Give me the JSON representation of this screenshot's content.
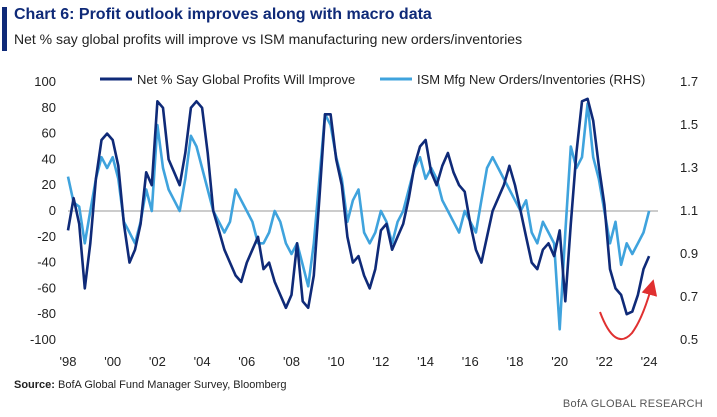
{
  "header": {
    "title": "Chart 6: Profit outlook improves along with macro data",
    "subtitle": "Net % say global profits will improve vs ISM manufacturing new orders/inventories"
  },
  "footer": {
    "source_label": "Source:",
    "source_text": "BofA Global Fund Manager Survey, Bloomberg",
    "brand": "BofA GLOBAL RESEARCH"
  },
  "colors": {
    "series1": "#0f2a78",
    "series2": "#3fa3dd",
    "arrow": "#e03030",
    "zero_line": "#999999"
  },
  "chart_data": {
    "type": "line",
    "xlim": [
      1998,
      2024.4
    ],
    "x_ticks": [
      1998,
      2000,
      2002,
      2004,
      2006,
      2008,
      2010,
      2012,
      2014,
      2016,
      2018,
      2020,
      2022,
      2024
    ],
    "x_tick_labels": [
      "'98",
      "'00",
      "'02",
      "'04",
      "'06",
      "'08",
      "'10",
      "'12",
      "'14",
      "'16",
      "'18",
      "'20",
      "'22",
      "'24"
    ],
    "ylim_left": [
      -100,
      100
    ],
    "y_ticks_left": [
      100,
      80,
      60,
      40,
      20,
      0,
      -20,
      -40,
      -60,
      -80,
      -100
    ],
    "ylim_right": [
      0.5,
      1.7
    ],
    "y_ticks_right": [
      1.7,
      1.5,
      1.3,
      1.1,
      0.9,
      0.7,
      0.5
    ],
    "y_tick_labels_right": [
      "1.7",
      "1.5",
      "1.3",
      "1.1",
      "0.9",
      "0.7",
      "0.5"
    ],
    "grid": false,
    "legend_position": "top",
    "series": [
      {
        "name": "Net % Say Global Profits Will Improve",
        "axis": "left",
        "x": [
          1998.0,
          1998.25,
          1998.5,
          1998.75,
          1999.0,
          1999.25,
          1999.5,
          1999.75,
          2000.0,
          2000.25,
          2000.5,
          2000.75,
          2001.0,
          2001.25,
          2001.5,
          2001.75,
          2002.0,
          2002.25,
          2002.5,
          2002.75,
          2003.0,
          2003.25,
          2003.5,
          2003.75,
          2004.0,
          2004.25,
          2004.5,
          2004.75,
          2005.0,
          2005.25,
          2005.5,
          2005.75,
          2006.0,
          2006.25,
          2006.5,
          2006.75,
          2007.0,
          2007.25,
          2007.5,
          2007.75,
          2008.0,
          2008.25,
          2008.5,
          2008.75,
          2009.0,
          2009.25,
          2009.5,
          2009.75,
          2010.0,
          2010.25,
          2010.5,
          2010.75,
          2011.0,
          2011.25,
          2011.5,
          2011.75,
          2012.0,
          2012.25,
          2012.5,
          2012.75,
          2013.0,
          2013.25,
          2013.5,
          2013.75,
          2014.0,
          2014.25,
          2014.5,
          2014.75,
          2015.0,
          2015.25,
          2015.5,
          2015.75,
          2016.0,
          2016.25,
          2016.5,
          2016.75,
          2017.0,
          2017.25,
          2017.5,
          2017.75,
          2018.0,
          2018.25,
          2018.5,
          2018.75,
          2019.0,
          2019.25,
          2019.5,
          2019.75,
          2020.0,
          2020.25,
          2020.5,
          2020.75,
          2021.0,
          2021.25,
          2021.5,
          2021.75,
          2022.0,
          2022.25,
          2022.5,
          2022.75,
          2023.0,
          2023.25,
          2023.5,
          2023.75,
          2024.0
        ],
        "values": [
          -15,
          10,
          -10,
          -60,
          -25,
          25,
          55,
          60,
          55,
          35,
          -10,
          -40,
          -30,
          -10,
          30,
          20,
          85,
          80,
          40,
          30,
          20,
          45,
          80,
          85,
          80,
          45,
          0,
          -15,
          -30,
          -40,
          -50,
          -55,
          -40,
          -30,
          -20,
          -45,
          -40,
          -55,
          -65,
          -75,
          -65,
          -25,
          -70,
          -75,
          -50,
          10,
          75,
          75,
          40,
          20,
          -20,
          -40,
          -35,
          -50,
          -60,
          -45,
          -15,
          -10,
          -30,
          -20,
          -10,
          10,
          35,
          50,
          55,
          30,
          20,
          35,
          45,
          30,
          20,
          15,
          -10,
          -30,
          -40,
          -20,
          0,
          10,
          20,
          35,
          20,
          0,
          -20,
          -40,
          -45,
          -30,
          -25,
          -35,
          -15,
          -70,
          -10,
          45,
          85,
          87,
          70,
          35,
          5,
          -45,
          -60,
          -65,
          -80,
          -78,
          -65,
          -45,
          -35
        ]
      },
      {
        "name": "ISM Mfg New Orders/Inventories (RHS)",
        "axis": "right",
        "x": [
          1998.0,
          1998.25,
          1998.5,
          1998.75,
          1999.0,
          1999.25,
          1999.5,
          1999.75,
          2000.0,
          2000.25,
          2000.5,
          2000.75,
          2001.0,
          2001.25,
          2001.5,
          2001.75,
          2002.0,
          2002.25,
          2002.5,
          2002.75,
          2003.0,
          2003.25,
          2003.5,
          2003.75,
          2004.0,
          2004.25,
          2004.5,
          2004.75,
          2005.0,
          2005.25,
          2005.5,
          2005.75,
          2006.0,
          2006.25,
          2006.5,
          2006.75,
          2007.0,
          2007.25,
          2007.5,
          2007.75,
          2008.0,
          2008.25,
          2008.5,
          2008.75,
          2009.0,
          2009.25,
          2009.5,
          2009.75,
          2010.0,
          2010.25,
          2010.5,
          2010.75,
          2011.0,
          2011.25,
          2011.5,
          2011.75,
          2012.0,
          2012.25,
          2012.5,
          2012.75,
          2013.0,
          2013.25,
          2013.5,
          2013.75,
          2014.0,
          2014.25,
          2014.5,
          2014.75,
          2015.0,
          2015.25,
          2015.5,
          2015.75,
          2016.0,
          2016.25,
          2016.5,
          2016.75,
          2017.0,
          2017.25,
          2017.5,
          2017.75,
          2018.0,
          2018.25,
          2018.5,
          2018.75,
          2019.0,
          2019.25,
          2019.5,
          2019.75,
          2020.0,
          2020.25,
          2020.5,
          2020.75,
          2021.0,
          2021.25,
          2021.5,
          2021.75,
          2022.0,
          2022.25,
          2022.5,
          2022.75,
          2023.0,
          2023.25,
          2023.5,
          2023.75,
          2024.0
        ],
        "values": [
          1.26,
          1.14,
          1.12,
          0.95,
          1.1,
          1.25,
          1.35,
          1.3,
          1.35,
          1.25,
          1.05,
          1.0,
          0.95,
          1.05,
          1.2,
          1.1,
          1.5,
          1.3,
          1.2,
          1.15,
          1.1,
          1.25,
          1.45,
          1.4,
          1.3,
          1.2,
          1.1,
          1.05,
          1.0,
          1.05,
          1.2,
          1.15,
          1.1,
          1.05,
          0.95,
          0.95,
          1.0,
          1.1,
          1.05,
          0.95,
          0.9,
          0.95,
          0.85,
          0.75,
          0.95,
          1.25,
          1.55,
          1.5,
          1.35,
          1.25,
          1.05,
          1.15,
          1.2,
          1.0,
          0.95,
          1.0,
          1.1,
          1.05,
          0.95,
          1.05,
          1.1,
          1.2,
          1.3,
          1.35,
          1.25,
          1.3,
          1.25,
          1.15,
          1.1,
          1.05,
          1.0,
          1.1,
          1.05,
          1.0,
          1.15,
          1.3,
          1.35,
          1.3,
          1.25,
          1.2,
          1.15,
          1.1,
          1.15,
          1.0,
          0.95,
          1.05,
          1.0,
          0.95,
          0.55,
          1.0,
          1.4,
          1.3,
          1.35,
          1.6,
          1.35,
          1.25,
          1.1,
          0.95,
          1.05,
          0.85,
          0.95,
          0.9,
          0.95,
          1.0,
          1.1
        ]
      }
    ]
  }
}
